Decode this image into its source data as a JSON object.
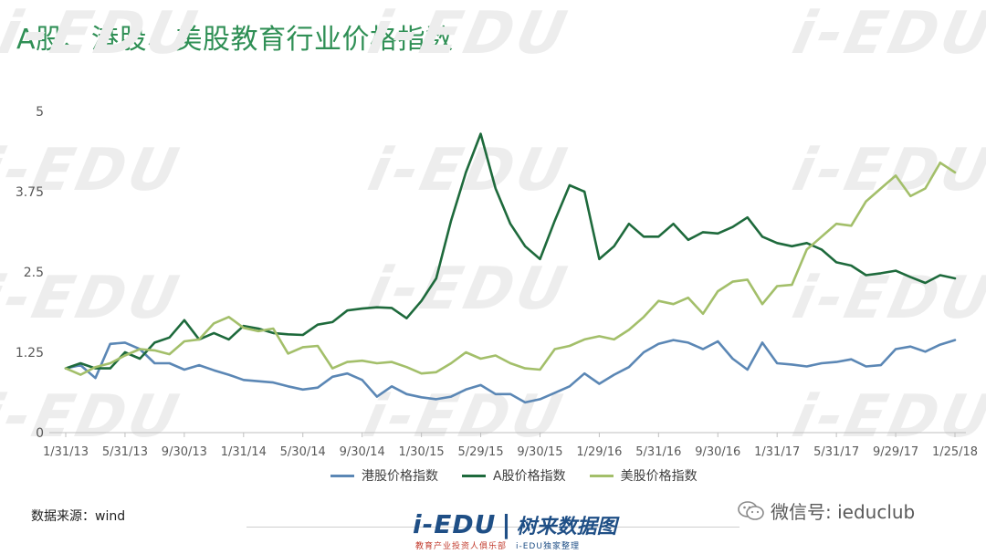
{
  "title": "A股、港股、美股教育行业价格指数",
  "source": "数据来源：wind",
  "watermark": {
    "main": "i-EDU",
    "sub": "教育产业投资人俱乐部"
  },
  "brand": {
    "main": "i-EDU",
    "sep": "|",
    "sub": "树来数据图",
    "tagline_red": "教育产业投资人俱乐部",
    "tagline_blue": "i-EDU独家整理"
  },
  "wechat": {
    "label": "微信号: ieduclub",
    "icon": "wechat-icon"
  },
  "colors": {
    "title": "#2f8f55",
    "hk": "#5b87b5",
    "a": "#1e6a3c",
    "us": "#a3bf6a",
    "axis": "#bfbfbf",
    "tick_text": "#595959"
  },
  "chart_data": {
    "type": "line",
    "title": "A股、港股、美股教育行业价格指数",
    "xlabel": "",
    "ylabel": "",
    "ylim": [
      0,
      5
    ],
    "yticks": [
      "0",
      "1.25",
      "2.5",
      "3.75",
      "5"
    ],
    "grid": false,
    "legend_position": "bottom",
    "x_tick_labels": [
      "1/31/13",
      "5/31/13",
      "9/30/13",
      "1/31/14",
      "5/30/14",
      "9/30/14",
      "1/30/15",
      "5/29/15",
      "9/30/15",
      "1/29/16",
      "5/31/16",
      "9/30/16",
      "1/31/17",
      "5/31/17",
      "9/29/17",
      "1/25/18"
    ],
    "series": [
      {
        "name": "港股价格指数",
        "key": "hk",
        "values": [
          1.0,
          1.05,
          0.85,
          1.38,
          1.4,
          1.3,
          1.08,
          1.08,
          0.98,
          1.05,
          0.97,
          0.9,
          0.82,
          0.8,
          0.78,
          0.72,
          0.67,
          0.7,
          0.87,
          0.92,
          0.82,
          0.56,
          0.72,
          0.6,
          0.55,
          0.52,
          0.56,
          0.67,
          0.74,
          0.6,
          0.6,
          0.47,
          0.52,
          0.62,
          0.72,
          0.92,
          0.76,
          0.9,
          1.02,
          1.25,
          1.38,
          1.44,
          1.4,
          1.3,
          1.42,
          1.15,
          0.98,
          1.4,
          1.08,
          1.06,
          1.03,
          1.08,
          1.1,
          1.14,
          1.03,
          1.05,
          1.3,
          1.34,
          1.26,
          1.37,
          1.44
        ]
      },
      {
        "name": "A股价格指数",
        "key": "a",
        "values": [
          1.0,
          1.08,
          1.0,
          1.0,
          1.25,
          1.15,
          1.4,
          1.48,
          1.75,
          1.45,
          1.55,
          1.45,
          1.66,
          1.62,
          1.55,
          1.53,
          1.52,
          1.68,
          1.72,
          1.9,
          1.93,
          1.95,
          1.94,
          1.78,
          2.05,
          2.4,
          3.3,
          4.05,
          4.65,
          3.8,
          3.25,
          2.9,
          2.7,
          3.3,
          3.85,
          3.75,
          2.7,
          2.9,
          3.25,
          3.05,
          3.05,
          3.25,
          3.0,
          3.12,
          3.1,
          3.2,
          3.35,
          3.05,
          2.95,
          2.9,
          2.95,
          2.85,
          2.65,
          2.6,
          2.45,
          2.48,
          2.52,
          2.42,
          2.33,
          2.45,
          2.4
        ]
      },
      {
        "name": "美股价格指数",
        "key": "us",
        "values": [
          1.0,
          0.9,
          1.02,
          1.08,
          1.2,
          1.3,
          1.28,
          1.22,
          1.42,
          1.45,
          1.7,
          1.8,
          1.63,
          1.58,
          1.62,
          1.23,
          1.33,
          1.35,
          1.0,
          1.1,
          1.12,
          1.08,
          1.1,
          1.02,
          0.92,
          0.94,
          1.08,
          1.25,
          1.15,
          1.2,
          1.08,
          1.0,
          0.98,
          1.3,
          1.35,
          1.45,
          1.5,
          1.45,
          1.6,
          1.8,
          2.05,
          2.0,
          2.1,
          1.85,
          2.2,
          2.35,
          2.38,
          2.0,
          2.28,
          2.3,
          2.85,
          3.05,
          3.25,
          3.22,
          3.6,
          3.8,
          4.0,
          3.68,
          3.8,
          4.2,
          4.05
        ]
      }
    ]
  }
}
